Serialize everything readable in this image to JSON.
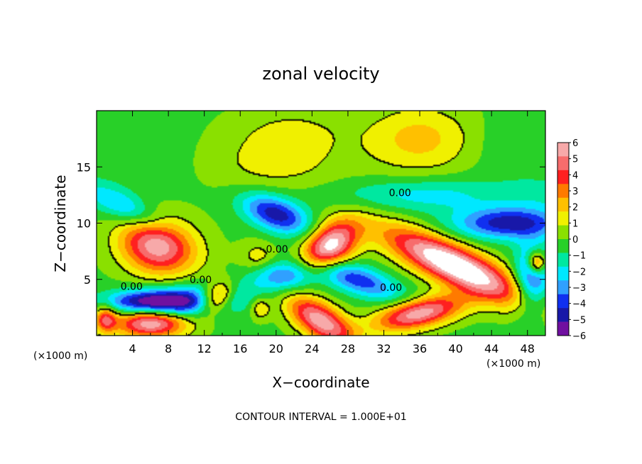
{
  "chart_data": {
    "type": "heatmap",
    "title": "zonal velocity",
    "xlabel": "X−coordinate",
    "ylabel": "Z−coordinate",
    "x_unit_left": "(×1000 m)",
    "x_unit_right": "(×1000 m)",
    "xlim": [
      0,
      50
    ],
    "ylim": [
      0,
      20
    ],
    "x_ticks": [
      4,
      8,
      12,
      16,
      20,
      24,
      28,
      32,
      36,
      40,
      44,
      48
    ],
    "x_tick_labels": [
      "4",
      "8",
      "12",
      "16",
      "20",
      "24",
      "28",
      "32",
      "36",
      "40",
      "44",
      "48"
    ],
    "y_ticks": [
      5,
      10,
      15
    ],
    "y_tick_labels": [
      "5",
      "10",
      "15"
    ],
    "footer": "CONTOUR INTERVAL = 1.000E+01",
    "colorbar": {
      "levels": [
        6,
        5,
        4,
        3,
        2,
        1,
        0,
        -1,
        -2,
        -3,
        -4,
        -5,
        -6
      ],
      "labels": [
        "6",
        "5",
        "4",
        "3",
        "2",
        "1",
        "0",
        "−1",
        "−2",
        "−3",
        "−4",
        "−5",
        "−6"
      ],
      "colors": [
        "#f7a9a9",
        "#f76c6c",
        "#ff2020",
        "#ff7a00",
        "#ffc000",
        "#f0f000",
        "#8ae000",
        "#28d028",
        "#00e8a0",
        "#00e8ff",
        "#30a0ff",
        "#1030f0",
        "#1818a8",
        "#7010a0"
      ]
    },
    "background_value": -1.2,
    "contour_labels": [
      {
        "text": "0.00",
        "x": 20.1,
        "z": 7.7
      },
      {
        "text": "0.00",
        "x": 33.8,
        "z": 12.7
      },
      {
        "text": "0.00",
        "x": 3.9,
        "z": 4.4
      },
      {
        "text": "0.00",
        "x": 11.6,
        "z": 5.0
      },
      {
        "text": "0.00",
        "x": 32.8,
        "z": 4.3
      }
    ],
    "features": [
      {
        "x": 6.8,
        "z": 8.0,
        "rx": 4.2,
        "rz": 2.5,
        "a": -8,
        "v": 7
      },
      {
        "x": 6.0,
        "z": 1.2,
        "rx": 4.0,
        "rz": 1.3,
        "a": 0,
        "v": 8
      },
      {
        "x": 13.3,
        "z": 3.4,
        "rx": 2.0,
        "rz": 1.3,
        "a": 20,
        "v": 6
      },
      {
        "x": 26.0,
        "z": 8.0,
        "rx": 3.3,
        "rz": 1.9,
        "a": 25,
        "v": 8
      },
      {
        "x": 40.0,
        "z": 6.2,
        "rx": 8.2,
        "rz": 1.8,
        "a": -20,
        "v": 9
      },
      {
        "x": 36.0,
        "z": 2.0,
        "rx": 5.0,
        "rz": 1.3,
        "a": 10,
        "v": 7
      },
      {
        "x": 25.0,
        "z": 1.3,
        "rx": 4.0,
        "rz": 1.6,
        "a": -25,
        "v": 7
      },
      {
        "x": 18.2,
        "z": 2.5,
        "rx": 1.1,
        "rz": 1.0,
        "a": 0,
        "v": 2.5
      },
      {
        "x": 49.0,
        "z": 6.5,
        "rx": 1.0,
        "rz": 1.0,
        "a": 0,
        "v": 6
      },
      {
        "x": 1.0,
        "z": 1.5,
        "rx": 1.2,
        "rz": 1.2,
        "a": 0,
        "v": 5
      },
      {
        "x": 20.0,
        "z": 10.8,
        "rx": 3.8,
        "rz": 1.5,
        "a": -15,
        "v": -5.5
      },
      {
        "x": 46.0,
        "z": 10.0,
        "rx": 6.0,
        "rz": 1.4,
        "a": 0,
        "v": -5.5
      },
      {
        "x": 10.0,
        "z": 3.0,
        "rx": 7.0,
        "rz": 1.5,
        "a": 5,
        "v": -4.5
      },
      {
        "x": 29.0,
        "z": 5.0,
        "rx": 5.0,
        "rz": 1.3,
        "a": -15,
        "v": -4.5
      },
      {
        "x": 21.0,
        "z": 5.3,
        "rx": 3.5,
        "rz": 1.3,
        "a": 0,
        "v": -4
      },
      {
        "x": 48.5,
        "z": 5.0,
        "rx": 2.0,
        "rz": 3.0,
        "a": 0,
        "v": -5
      },
      {
        "x": 6.0,
        "z": 3.0,
        "rx": 5.0,
        "rz": 1.0,
        "a": 0,
        "v": -5
      },
      {
        "x": 3.0,
        "z": 11.5,
        "rx": 5.0,
        "rz": 1.3,
        "a": -20,
        "v": -3
      },
      {
        "x": 40.0,
        "z": 12.5,
        "rx": 14.0,
        "rz": 1.5,
        "a": 0,
        "v": -2.5
      },
      {
        "x": 20.0,
        "z": 15.5,
        "rx": 8.0,
        "rz": 3.0,
        "a": 0,
        "v": 1.6
      },
      {
        "x": 36.0,
        "z": 17.5,
        "rx": 6.0,
        "rz": 3.0,
        "a": 0,
        "v": 2.6
      },
      {
        "x": 22.0,
        "z": 18.5,
        "rx": 6.0,
        "rz": 2.0,
        "a": 0,
        "v": 1.0
      },
      {
        "x": 44.0,
        "z": 12.5,
        "rx": 5.0,
        "rz": 1.5,
        "a": 0,
        "v": 1.0
      },
      {
        "x": 18.0,
        "z": 7.0,
        "rx": 2.0,
        "rz": 1.4,
        "a": 0,
        "v": 1.8
      },
      {
        "x": 5.0,
        "z": 16.0,
        "rx": 6.0,
        "rz": 4.0,
        "a": 0,
        "v": -0.6
      },
      {
        "x": 47.0,
        "z": 17.0,
        "rx": 5.0,
        "rz": 3.0,
        "a": 0,
        "v": -0.8
      }
    ]
  }
}
